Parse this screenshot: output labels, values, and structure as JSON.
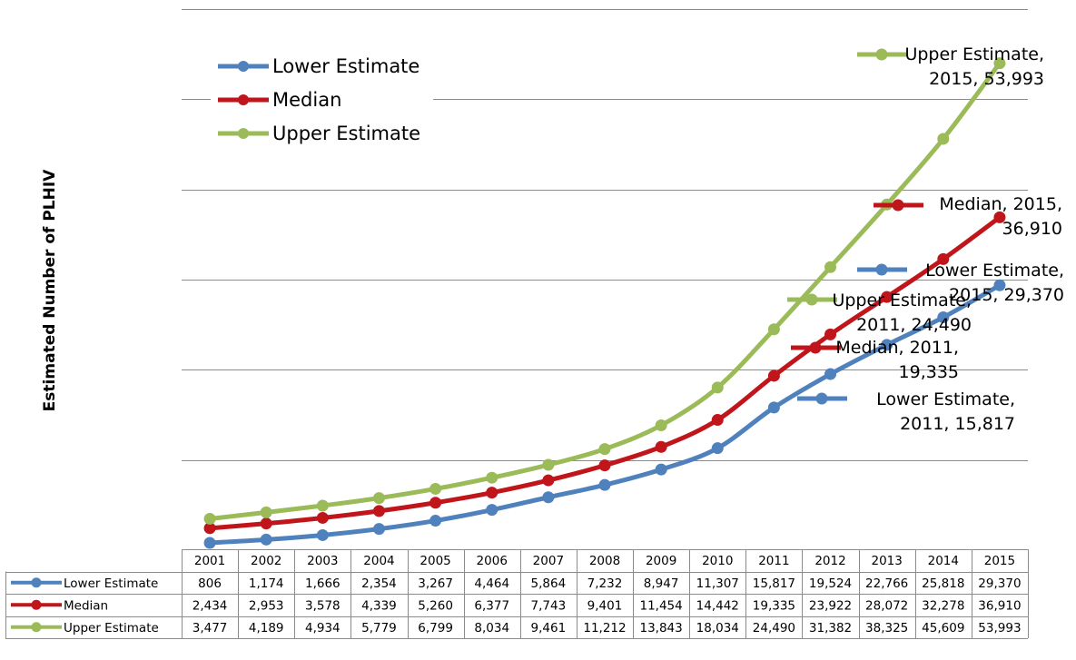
{
  "chart_data": {
    "type": "line",
    "title": "",
    "xlabel": "",
    "ylabel": "Estimated Number of PLHIV",
    "ylim": [
      0,
      60000
    ],
    "grid": true,
    "legend_position": "top-left",
    "categories": [
      "2001",
      "2002",
      "2003",
      "2004",
      "2005",
      "2006",
      "2007",
      "2008",
      "2009",
      "2010",
      "2011",
      "2012",
      "2013",
      "2014",
      "2015"
    ],
    "series": [
      {
        "name": "Lower Estimate",
        "color": "#4F81BD",
        "values": [
          806,
          1174,
          1666,
          2354,
          3267,
          4464,
          5864,
          7232,
          8947,
          11307,
          15817,
          19524,
          22766,
          25818,
          29370
        ],
        "display": [
          "806",
          "1,174",
          "1,666",
          "2,354",
          "3,267",
          "4,464",
          "5,864",
          "7,232",
          "8,947",
          "11,307",
          "15,817",
          "19,524",
          "22,766",
          "25,818",
          "29,370"
        ]
      },
      {
        "name": "Median",
        "color": "#C0151B",
        "values": [
          2434,
          2953,
          3578,
          4339,
          5260,
          6377,
          7743,
          9401,
          11454,
          14442,
          19335,
          23922,
          28072,
          32278,
          36910
        ],
        "display": [
          "2,434",
          "2,953",
          "3,578",
          "4,339",
          "5,260",
          "6,377",
          "7,743",
          "9,401",
          "11,454",
          "14,442",
          "19,335",
          "23,922",
          "28,072",
          "32,278",
          "36,910"
        ]
      },
      {
        "name": "Upper Estimate",
        "color": "#9BBB59",
        "values": [
          3477,
          4189,
          4934,
          5779,
          6799,
          8034,
          9461,
          11212,
          13843,
          18034,
          24490,
          31382,
          38325,
          45609,
          53993
        ],
        "display": [
          "3,477",
          "4,189",
          "4,934",
          "5,779",
          "6,799",
          "8,034",
          "9,461",
          "11,212",
          "13,843",
          "18,034",
          "24,490",
          "31,382",
          "38,325",
          "45,609",
          "53,993"
        ]
      }
    ],
    "annotations": [
      {
        "series": 2,
        "index": 14,
        "lines": [
          "Upper Estimate,",
          "2015, 53,993"
        ]
      },
      {
        "series": 1,
        "index": 14,
        "lines": [
          "Median, 2015,",
          "36,910"
        ]
      },
      {
        "series": 0,
        "index": 14,
        "lines": [
          "Lower Estimate,",
          "2015, 29,370"
        ]
      },
      {
        "series": 2,
        "index": 10,
        "lines": [
          "Upper Estimate,",
          "2011, 24,490"
        ]
      },
      {
        "series": 1,
        "index": 10,
        "lines": [
          "Median, 2011,",
          "19,335"
        ]
      },
      {
        "series": 0,
        "index": 10,
        "lines": [
          "Lower Estimate,",
          "2011, 15,817"
        ]
      }
    ]
  }
}
